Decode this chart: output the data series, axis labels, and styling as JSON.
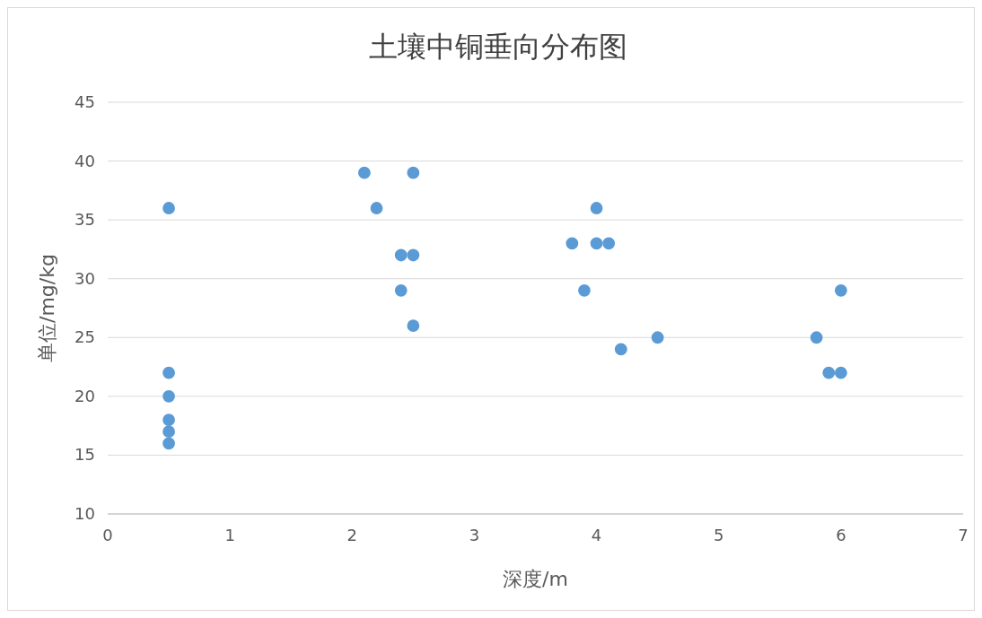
{
  "chart_data": {
    "type": "scatter",
    "title": "土壤中铜垂向分布图",
    "xlabel": "深度/m",
    "ylabel": "单位/mg/kg",
    "series": [
      {
        "color": "#5b9bd5",
        "x": [
          0.5,
          0.5,
          0.5,
          0.5,
          0.5,
          0.5,
          2.1,
          2.2,
          2.4,
          2.4,
          2.5,
          2.5,
          2.5,
          3.8,
          3.9,
          4.0,
          4.0,
          4.1,
          4.2,
          4.5,
          5.8,
          5.9,
          6.0,
          6.0
        ],
        "values": [
          36,
          22,
          20,
          18,
          17,
          16,
          39,
          36,
          32,
          29,
          39,
          32,
          26,
          33,
          29,
          36,
          33,
          33,
          24,
          25,
          25,
          22,
          29,
          22
        ]
      }
    ],
    "xlim": [
      0,
      7
    ],
    "xticks": [
      0,
      1,
      2,
      3,
      4,
      5,
      6,
      7
    ],
    "ylim": [
      10,
      45
    ],
    "yticks": [
      10,
      15,
      20,
      25,
      30,
      35,
      40,
      45
    ],
    "grid": "y",
    "marker": "circle"
  }
}
